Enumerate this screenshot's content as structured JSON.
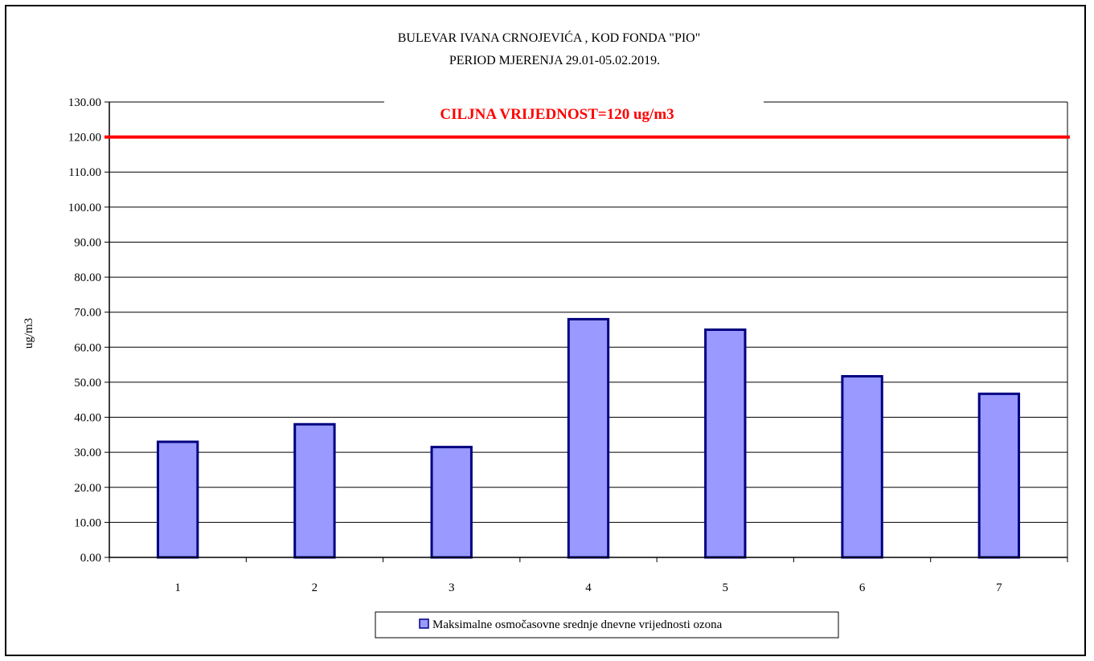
{
  "chart_data": {
    "type": "bar",
    "title_lines": [
      "BULEVAR  IVANA CRNOJEVIĆA , KOD FONDA \"PIO\"",
      "PERIOD MJERENJA 29.01-05.02.2019."
    ],
    "categories": [
      "1",
      "2",
      "3",
      "4",
      "5",
      "6",
      "7"
    ],
    "series": [
      {
        "name": "Maksimalne osmočasovne srednje dnevne vrijednosti ozona",
        "values": [
          33.0,
          38.0,
          31.5,
          68.0,
          65.0,
          51.7,
          46.7
        ],
        "fill_color": "#9999ff",
        "stroke_color": "#000080"
      }
    ],
    "xlabel": "",
    "ylabel": "ug/m3",
    "ylim": [
      0,
      130
    ],
    "y_ticks": [
      "0.00",
      "10.00",
      "20.00",
      "30.00",
      "40.00",
      "50.00",
      "60.00",
      "70.00",
      "80.00",
      "90.00",
      "100.00",
      "110.00",
      "120.00",
      "130.00"
    ],
    "target_line": {
      "value": 120,
      "label": "CILJNA VRIJEDNOST=120 ug/m3",
      "color": "#ff0000"
    },
    "grid": true,
    "legend_position": "bottom"
  }
}
